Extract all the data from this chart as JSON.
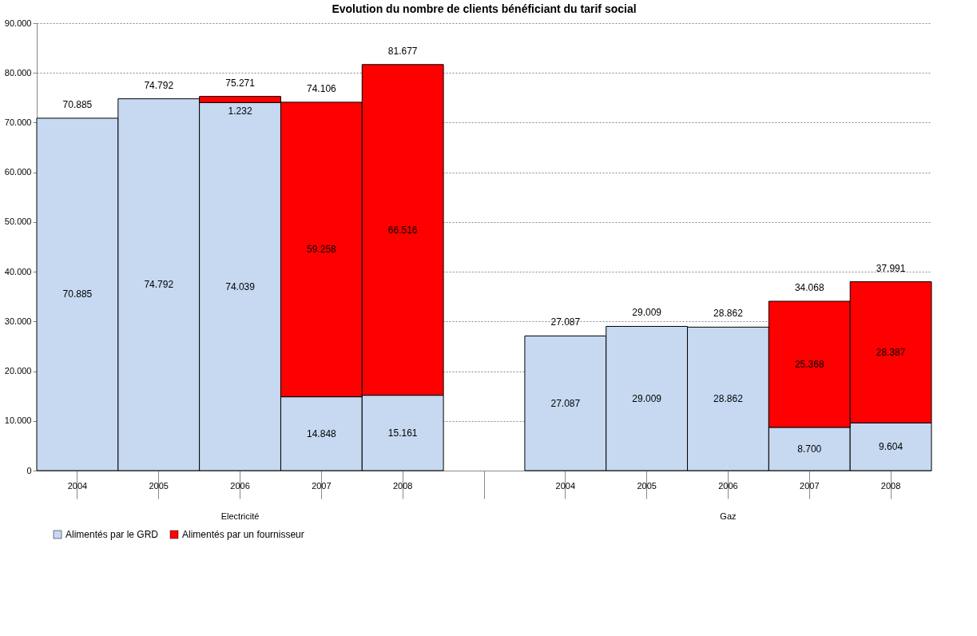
{
  "chart_data": {
    "type": "bar",
    "title": "Evolution du nombre de clients bénéficiant du tarif social",
    "categories": [
      "2004",
      "2005",
      "2006",
      "2007",
      "2008",
      null,
      "2004",
      "2005",
      "2006",
      "2007",
      "2008"
    ],
    "stacked": true,
    "series": [
      {
        "name": "Alimentés par  le GRD",
        "color": "#c6d9f1",
        "values": [
          70885,
          74792,
          74039,
          14848,
          15161,
          null,
          27087,
          29009,
          28862,
          8700,
          9604
        ],
        "value_labels": [
          "70.885",
          "74.792",
          "74.039",
          "14.848",
          "15.161",
          null,
          "27.087",
          "29.009",
          "28.862",
          "8.700",
          "9.604"
        ]
      },
      {
        "name": "Alimentés par un fournisseur",
        "color": "#ff0000",
        "values": [
          null,
          null,
          1232,
          59258,
          66516,
          null,
          null,
          null,
          null,
          25368,
          28387
        ],
        "value_labels": [
          null,
          null,
          "1.232",
          "59.258",
          "66.516",
          null,
          null,
          null,
          null,
          "25.368",
          "28.387"
        ]
      }
    ],
    "totals": [
      "70.885",
      "74.792",
      "75.271",
      "74.106",
      "81.677",
      null,
      "27.087",
      "29.009",
      "28.862",
      "34.068",
      "37.991"
    ],
    "annotations": [
      "Electricité",
      "Gaz"
    ],
    "ylim": [
      0,
      90000
    ],
    "yticks": [
      0,
      {
        "value": 10000,
        "label": "10.000"
      },
      {
        "value": 20000,
        "label": "20.000"
      },
      {
        "value": 30000,
        "label": "30.000"
      },
      {
        "value": 40000,
        "label": "40.000"
      },
      {
        "value": 50000,
        "label": "50.000"
      },
      {
        "value": 60000,
        "label": "60.000"
      },
      {
        "value": 70000,
        "label": "70.000"
      },
      {
        "value": 80000,
        "label": "80.000"
      },
      {
        "value": 90000,
        "label": "90.000"
      }
    ],
    "grid": "y",
    "legend": "bottom"
  }
}
